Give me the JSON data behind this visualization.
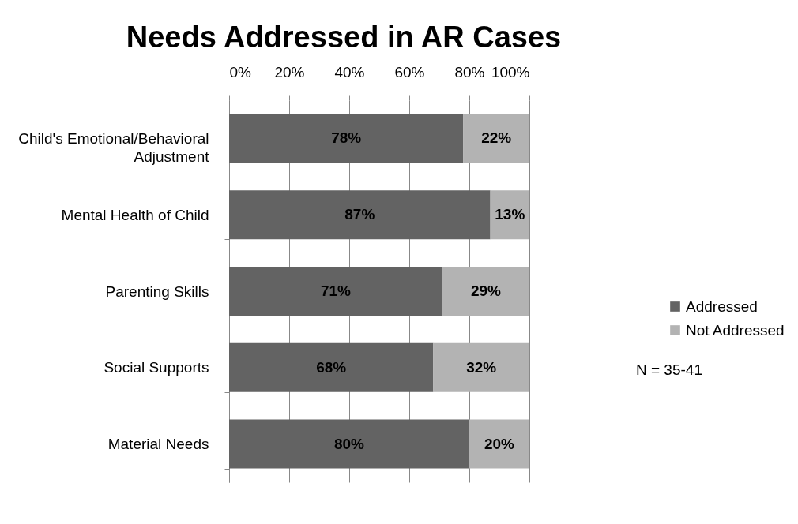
{
  "chart_data": {
    "type": "bar",
    "orientation": "horizontal",
    "stacked": true,
    "title": "Needs Addressed in AR Cases",
    "categories": [
      "Child's Emotional/Behavioral Adjustment",
      "Mental Health of Child",
      "Parenting Skills",
      "Social Supports",
      "Material Needs"
    ],
    "series": [
      {
        "name": "Addressed",
        "color": "#636363",
        "values": [
          78,
          87,
          71,
          68,
          80
        ],
        "value_labels": [
          "78%",
          "87%",
          "71%",
          "68%",
          "80%"
        ]
      },
      {
        "name": "Not Addressed",
        "color": "#b3b3b3",
        "values": [
          22,
          13,
          29,
          32,
          20
        ],
        "value_labels": [
          "22%",
          "13%",
          "29%",
          "32%",
          "20%"
        ]
      }
    ],
    "xlim": [
      0,
      100
    ],
    "xticks": [
      {
        "value": 0,
        "label": "0%"
      },
      {
        "value": 20,
        "label": "20%"
      },
      {
        "value": 40,
        "label": "40%"
      },
      {
        "value": 60,
        "label": "60%"
      },
      {
        "value": 80,
        "label": "80%"
      },
      {
        "value": 100,
        "label": "100%"
      }
    ],
    "grid": "x",
    "legend": "right",
    "annotations": [
      "N = 35-41"
    ]
  }
}
